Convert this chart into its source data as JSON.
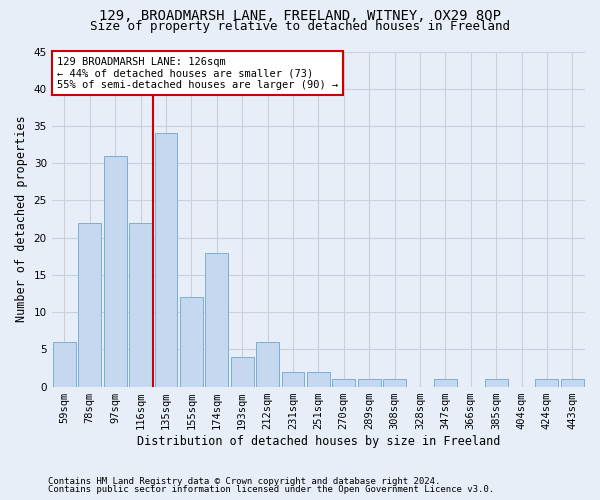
{
  "title1": "129, BROADMARSH LANE, FREELAND, WITNEY, OX29 8QP",
  "title2": "Size of property relative to detached houses in Freeland",
  "xlabel": "Distribution of detached houses by size in Freeland",
  "ylabel": "Number of detached properties",
  "categories": [
    "59sqm",
    "78sqm",
    "97sqm",
    "116sqm",
    "135sqm",
    "155sqm",
    "174sqm",
    "193sqm",
    "212sqm",
    "231sqm",
    "251sqm",
    "270sqm",
    "289sqm",
    "308sqm",
    "328sqm",
    "347sqm",
    "366sqm",
    "385sqm",
    "404sqm",
    "424sqm",
    "443sqm"
  ],
  "values": [
    6,
    22,
    31,
    22,
    34,
    12,
    18,
    4,
    6,
    2,
    2,
    1,
    1,
    1,
    0,
    1,
    0,
    1,
    0,
    1,
    1
  ],
  "bar_color": "#c5d8f0",
  "bar_edge_color": "#7aafd4",
  "annotation_line1": "129 BROADMARSH LANE: 126sqm",
  "annotation_line2": "← 44% of detached houses are smaller (73)",
  "annotation_line3": "55% of semi-detached houses are larger (90) →",
  "annotation_box_color": "#ffffff",
  "annotation_box_edge_color": "#cc0000",
  "vline_color": "#cc0000",
  "ylim": [
    0,
    45
  ],
  "yticks": [
    0,
    5,
    10,
    15,
    20,
    25,
    30,
    35,
    40,
    45
  ],
  "footnote1": "Contains HM Land Registry data © Crown copyright and database right 2024.",
  "footnote2": "Contains public sector information licensed under the Open Government Licence v3.0.",
  "bg_color": "#e8eef8",
  "grid_color": "#c8d0e0",
  "title1_fontsize": 10,
  "title2_fontsize": 9,
  "xlabel_fontsize": 8.5,
  "ylabel_fontsize": 8.5,
  "tick_fontsize": 7.5,
  "annot_fontsize": 7.5,
  "footnote_fontsize": 6.5
}
